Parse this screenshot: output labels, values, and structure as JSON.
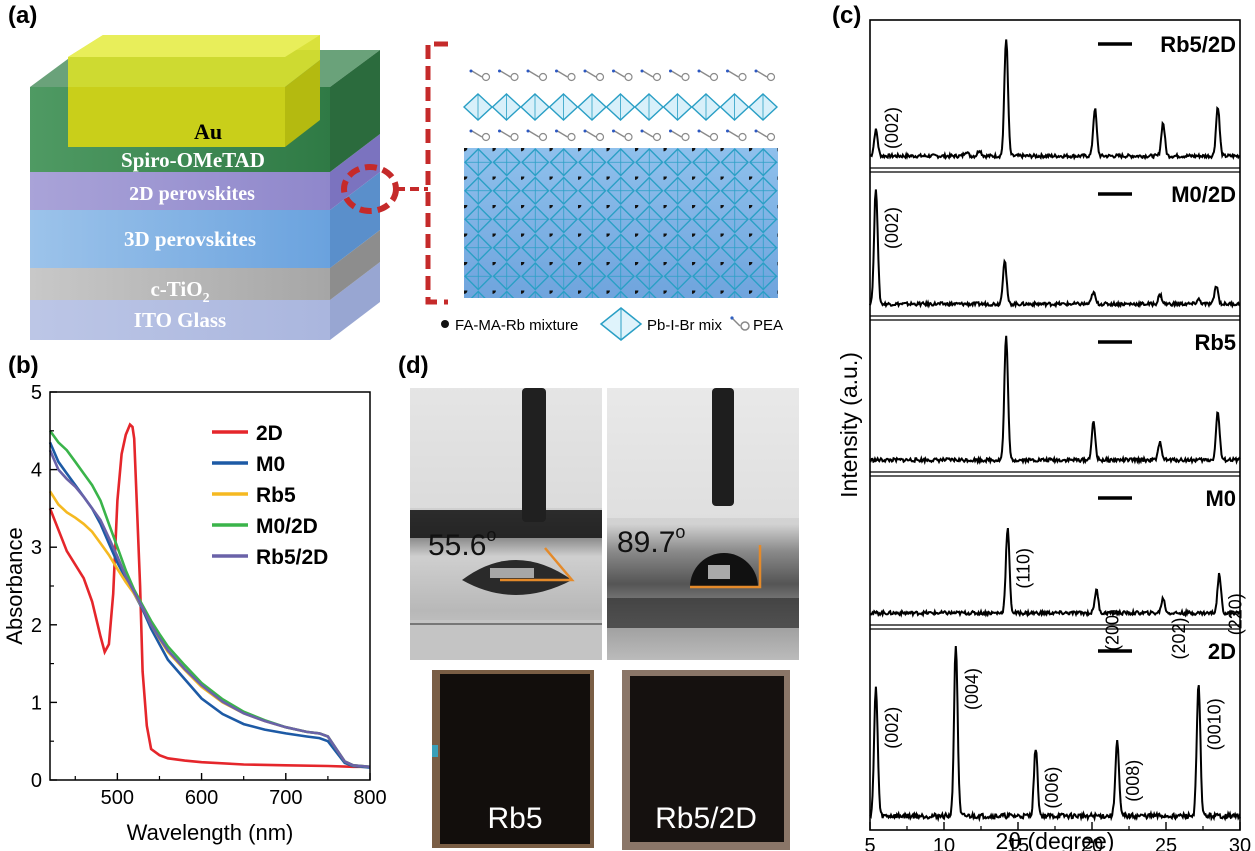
{
  "panels": {
    "a": {
      "label": "(a)",
      "layers": [
        "Au",
        "Spiro-OMeTAD",
        "2D perovskites",
        "3D perovskites",
        "c-TiO",
        "ITO Glass"
      ],
      "tio2_subscript": "2",
      "legend": {
        "mixture": "FA-MA-Rb mixture",
        "octahedra": "Pb-I-Br mix",
        "spacer": "PEA"
      }
    },
    "b": {
      "label": "(b)"
    },
    "c": {
      "label": "(c)"
    },
    "d": {
      "label": "(d)",
      "angles": [
        "55.6",
        "89.7"
      ],
      "degree_symbol": "o",
      "samples": [
        "Rb5",
        "Rb5/2D"
      ]
    }
  },
  "chart_data": [
    {
      "id": "b",
      "type": "line",
      "title": "",
      "xlabel": "Wavelength (nm)",
      "ylabel": "Absorbance",
      "xlim": [
        420,
        800
      ],
      "ylim": [
        0,
        5
      ],
      "xticks": [
        500,
        600,
        700,
        800
      ],
      "yticks": [
        0,
        1,
        2,
        3,
        4,
        5
      ],
      "grid": false,
      "legend_position": "top-right",
      "series": [
        {
          "name": "2D",
          "color": "#e5262b",
          "x": [
            420,
            440,
            460,
            470,
            480,
            485,
            490,
            495,
            500,
            505,
            510,
            515,
            518,
            520,
            523,
            527,
            530,
            535,
            540,
            550,
            560,
            580,
            600,
            650,
            700,
            750,
            780,
            800
          ],
          "y": [
            3.5,
            2.95,
            2.6,
            2.3,
            1.85,
            1.65,
            1.75,
            2.4,
            3.6,
            4.2,
            4.45,
            4.58,
            4.55,
            4.4,
            3.6,
            2.5,
            1.4,
            0.7,
            0.4,
            0.32,
            0.28,
            0.25,
            0.23,
            0.2,
            0.19,
            0.18,
            0.17,
            0.17
          ]
        },
        {
          "name": "M0",
          "color": "#1d5aa5",
          "x": [
            420,
            430,
            440,
            450,
            460,
            470,
            480,
            490,
            500,
            510,
            520,
            530,
            540,
            550,
            560,
            580,
            600,
            625,
            650,
            675,
            700,
            725,
            740,
            750,
            760,
            770,
            780,
            800
          ],
          "y": [
            4.35,
            4.1,
            3.95,
            3.8,
            3.65,
            3.5,
            3.3,
            3.05,
            2.8,
            2.6,
            2.4,
            2.2,
            1.95,
            1.75,
            1.55,
            1.3,
            1.05,
            0.85,
            0.72,
            0.65,
            0.6,
            0.56,
            0.54,
            0.5,
            0.36,
            0.22,
            0.18,
            0.16
          ]
        },
        {
          "name": "Rb5",
          "color": "#f5b921",
          "x": [
            420,
            430,
            440,
            450,
            460,
            470,
            480,
            490,
            500,
            510,
            520,
            530,
            540,
            550,
            560,
            580,
            600,
            625,
            650,
            675,
            700,
            725,
            740,
            750,
            760,
            770,
            780,
            800
          ],
          "y": [
            3.72,
            3.55,
            3.45,
            3.38,
            3.3,
            3.2,
            3.05,
            2.9,
            2.72,
            2.55,
            2.4,
            2.22,
            2.0,
            1.82,
            1.65,
            1.42,
            1.2,
            1.0,
            0.86,
            0.76,
            0.68,
            0.62,
            0.6,
            0.56,
            0.4,
            0.24,
            0.19,
            0.17
          ]
        },
        {
          "name": "M0/2D",
          "color": "#3ab44a",
          "x": [
            420,
            430,
            440,
            450,
            460,
            470,
            480,
            490,
            500,
            510,
            520,
            530,
            540,
            550,
            560,
            580,
            600,
            625,
            650,
            675,
            700,
            725,
            740,
            750,
            760,
            770,
            780,
            800
          ],
          "y": [
            4.5,
            4.35,
            4.25,
            4.1,
            3.95,
            3.8,
            3.6,
            3.3,
            3.0,
            2.7,
            2.45,
            2.25,
            2.05,
            1.88,
            1.72,
            1.48,
            1.25,
            1.04,
            0.88,
            0.77,
            0.68,
            0.62,
            0.6,
            0.56,
            0.4,
            0.24,
            0.19,
            0.17
          ]
        },
        {
          "name": "Rb5/2D",
          "color": "#6a62a8",
          "x": [
            420,
            430,
            440,
            450,
            460,
            470,
            480,
            490,
            500,
            510,
            520,
            530,
            540,
            550,
            560,
            580,
            600,
            625,
            650,
            675,
            700,
            725,
            740,
            750,
            760,
            770,
            780,
            800
          ],
          "y": [
            4.25,
            4.0,
            3.88,
            3.78,
            3.65,
            3.5,
            3.35,
            3.12,
            2.88,
            2.62,
            2.42,
            2.22,
            2.0,
            1.83,
            1.67,
            1.43,
            1.22,
            1.01,
            0.86,
            0.76,
            0.68,
            0.62,
            0.6,
            0.56,
            0.4,
            0.24,
            0.19,
            0.17
          ]
        }
      ]
    },
    {
      "id": "c",
      "type": "line",
      "title": "",
      "xlabel": "2θ (degree)",
      "ylabel": "Intensity (a.u.)",
      "xlim": [
        5,
        30
      ],
      "xticks": [
        5,
        10,
        15,
        20,
        25,
        30
      ],
      "grid": false,
      "stacked_panels": [
        {
          "name": "Rb5/2D",
          "peaks": [
            [
              5.4,
              0.22
            ],
            [
              11.5,
              0.04
            ],
            [
              12.4,
              0.05
            ],
            [
              14.2,
              1.0
            ],
            [
              20.2,
              0.4
            ],
            [
              24.8,
              0.28
            ],
            [
              28.5,
              0.42
            ]
          ],
          "annotations": [
            {
              "text": "(002)",
              "x": 5.4
            }
          ]
        },
        {
          "name": "M0/2D",
          "peaks": [
            [
              5.4,
              1.0
            ],
            [
              14.1,
              0.38
            ],
            [
              20.1,
              0.1
            ],
            [
              24.6,
              0.08
            ],
            [
              27.2,
              0.04
            ],
            [
              28.4,
              0.16
            ]
          ],
          "annotations": [
            {
              "text": "(002)",
              "x": 5.4
            }
          ]
        },
        {
          "name": "Rb5",
          "peaks": [
            [
              14.2,
              1.0
            ],
            [
              20.1,
              0.3
            ],
            [
              24.6,
              0.14
            ],
            [
              28.5,
              0.39
            ]
          ],
          "annotations": []
        },
        {
          "name": "M0",
          "peaks": [
            [
              14.3,
              0.7
            ],
            [
              20.3,
              0.19
            ],
            [
              24.8,
              0.12
            ],
            [
              28.6,
              0.32
            ]
          ],
          "annotations": [
            {
              "text": "(110)",
              "x": 14.3
            },
            {
              "text": "(200)",
              "x": 20.3
            },
            {
              "text": "(202)",
              "x": 24.8
            },
            {
              "text": "(220)",
              "x": 28.6
            }
          ]
        },
        {
          "name": "2D",
          "peaks": [
            [
              5.4,
              0.75
            ],
            [
              10.8,
              1.0
            ],
            [
              16.2,
              0.4
            ],
            [
              21.7,
              0.44
            ],
            [
              27.2,
              0.77
            ]
          ],
          "annotations": [
            {
              "text": "(002)",
              "x": 5.4
            },
            {
              "text": "(004)",
              "x": 10.8
            },
            {
              "text": "(006)",
              "x": 16.2
            },
            {
              "text": "(008)",
              "x": 21.7
            },
            {
              "text": "(0010)",
              "x": 27.2
            }
          ]
        }
      ]
    }
  ]
}
